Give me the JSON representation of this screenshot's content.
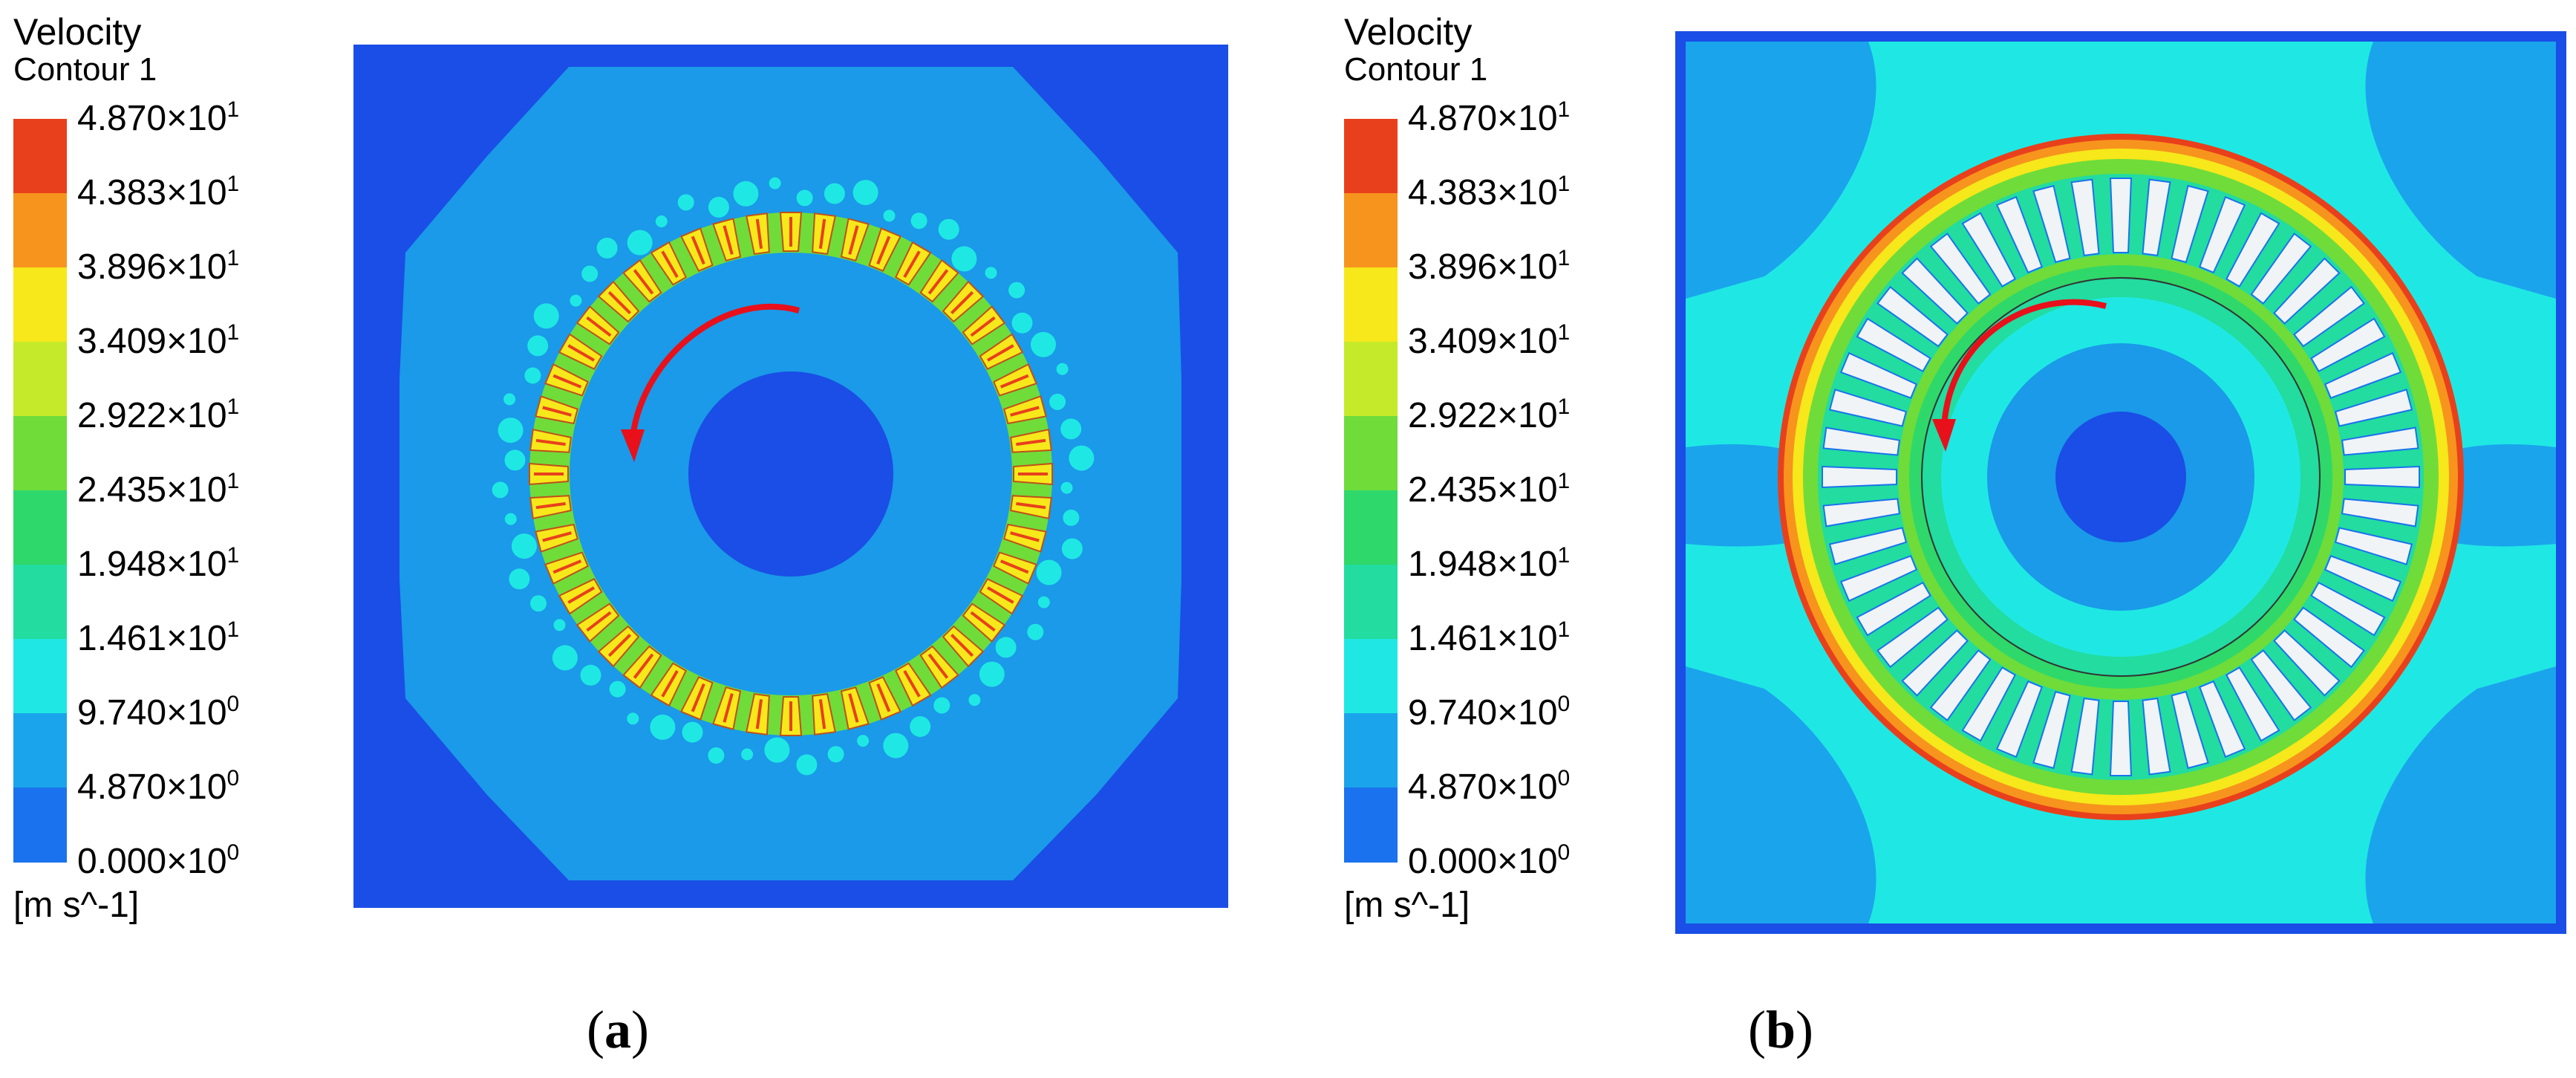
{
  "legend": {
    "title": "Velocity",
    "subtitle": "Contour 1",
    "units": "[m s^-1]",
    "levels": [
      {
        "mantissa": "4.870",
        "exp": "1"
      },
      {
        "mantissa": "4.383",
        "exp": "1"
      },
      {
        "mantissa": "3.896",
        "exp": "1"
      },
      {
        "mantissa": "3.409",
        "exp": "1"
      },
      {
        "mantissa": "2.922",
        "exp": "1"
      },
      {
        "mantissa": "2.435",
        "exp": "1"
      },
      {
        "mantissa": "1.948",
        "exp": "1"
      },
      {
        "mantissa": "1.461",
        "exp": "1"
      },
      {
        "mantissa": "9.740",
        "exp": "0"
      },
      {
        "mantissa": "4.870",
        "exp": "0"
      },
      {
        "mantissa": "0.000",
        "exp": "0"
      }
    ],
    "band_colors": [
      "#e8401c",
      "#f7941d",
      "#f6e81a",
      "#c5ea2a",
      "#6fdc3a",
      "#2fd86a",
      "#22dca0",
      "#1fe8e4",
      "#1aa4ec",
      "#1a72ee"
    ],
    "bottom_color": "#1a4ee6"
  },
  "panels": [
    {
      "id": "a",
      "caption_open": "(",
      "caption_letter": "a",
      "caption_close": ")"
    },
    {
      "id": "b",
      "caption_open": "(",
      "caption_letter": "b",
      "caption_close": ")"
    }
  ],
  "rotation_arrow_color": "#e8101a",
  "slot_count": 48
}
